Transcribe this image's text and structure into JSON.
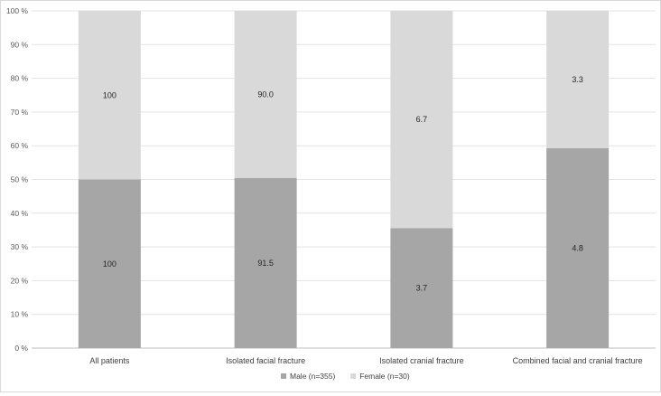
{
  "chart_data": {
    "type": "bar",
    "stacked": true,
    "percent_stacked": true,
    "categories": [
      "All patients",
      "Isolated facial fracture",
      "Isolated cranial fracture",
      "Combined facial and cranial fracture"
    ],
    "series": [
      {
        "name": "Male (n=355)",
        "color": "#a6a6a6",
        "values": [
          50,
          50.4,
          35.6,
          59.3
        ],
        "labels": [
          "100",
          "91.5",
          "3.7",
          "4.8"
        ]
      },
      {
        "name": "Female (n=30)",
        "color": "#d9d9d9",
        "values": [
          50,
          49.6,
          64.4,
          40.7
        ],
        "labels": [
          "100",
          "90.0",
          "6.7",
          "3.3"
        ]
      }
    ],
    "y_ticks": [
      "0 %",
      "10 %",
      "20 %",
      "30 %",
      "40 %",
      "50 %",
      "60 %",
      "70 %",
      "80 %",
      "90 %",
      "100 %"
    ],
    "ylim": [
      0,
      100
    ],
    "grid": true,
    "legend": "bottom",
    "title": "",
    "xlabel": "",
    "ylabel": ""
  }
}
